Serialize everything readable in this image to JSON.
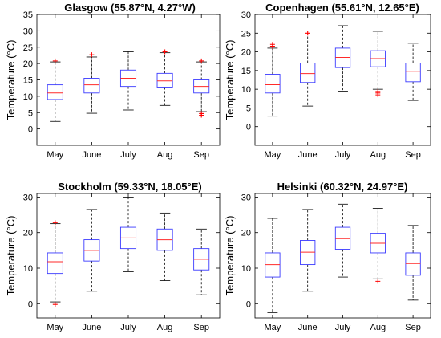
{
  "colors": {
    "box": "#3b3bff",
    "median": "#ff2a2a",
    "whisker": "#000000",
    "outlier": "#ff0000",
    "axis": "#000000"
  },
  "chart_data": [
    {
      "type": "box",
      "title": "Glasgow (55.87°N, 4.27°W)",
      "ylabel": "Temperature  (°C)",
      "ylim": [
        -5,
        35
      ],
      "yticks": [
        "0",
        "5",
        "10",
        "15",
        "20",
        "25",
        "30",
        "35"
      ],
      "categories": [
        "May",
        "June",
        "July",
        "Aug",
        "Sep"
      ],
      "boxes": [
        {
          "min": 2.3,
          "q1": 9.0,
          "median": 11.0,
          "q3": 13.5,
          "max": 20.5,
          "outliers": [
            20.8
          ]
        },
        {
          "min": 4.8,
          "q1": 11.0,
          "median": 13.5,
          "q3": 15.5,
          "max": 22.0,
          "outliers": [
            22.7
          ]
        },
        {
          "min": 5.8,
          "q1": 13.0,
          "median": 15.5,
          "q3": 18.0,
          "max": 23.6,
          "outliers": []
        },
        {
          "min": 7.2,
          "q1": 12.8,
          "median": 14.7,
          "q3": 17.0,
          "max": 23.3,
          "outliers": [
            23.6
          ]
        },
        {
          "min": 5.3,
          "q1": 11.0,
          "median": 13.0,
          "q3": 15.0,
          "max": 20.5,
          "outliers": [
            4.2,
            4.7,
            20.8
          ]
        }
      ]
    },
    {
      "type": "box",
      "title": "Copenhagen (55.61°N, 12.65°E)",
      "ylabel": "Temperature  (°C)",
      "ylim": [
        -5,
        30
      ],
      "yticks": [
        "0",
        "5",
        "10",
        "15",
        "20",
        "25",
        "30"
      ],
      "categories": [
        "May",
        "June",
        "July",
        "Aug",
        "Sep"
      ],
      "boxes": [
        {
          "min": 2.8,
          "q1": 9.0,
          "median": 11.2,
          "q3": 14.0,
          "max": 21.0,
          "outliers": [
            21.5,
            22.0
          ]
        },
        {
          "min": 5.5,
          "q1": 11.8,
          "median": 14.2,
          "q3": 17.0,
          "max": 24.5,
          "outliers": [
            25.0
          ]
        },
        {
          "min": 9.5,
          "q1": 15.8,
          "median": 18.5,
          "q3": 21.0,
          "max": 27.0,
          "outliers": []
        },
        {
          "min": 10.0,
          "q1": 16.0,
          "median": 18.2,
          "q3": 20.3,
          "max": 25.5,
          "outliers": [
            8.5,
            9.0,
            9.4
          ]
        },
        {
          "min": 7.0,
          "q1": 12.0,
          "median": 14.8,
          "q3": 17.0,
          "max": 22.3,
          "outliers": []
        }
      ]
    },
    {
      "type": "box",
      "title": "Stockholm (59.33°N, 18.05°E)",
      "ylabel": "Temperature  (°C)",
      "ylim": [
        -4,
        31
      ],
      "yticks": [
        "0",
        "10",
        "20",
        "30"
      ],
      "categories": [
        "May",
        "June",
        "July",
        "Aug",
        "Sep"
      ],
      "boxes": [
        {
          "min": 0.5,
          "q1": 8.5,
          "median": 11.8,
          "q3": 14.3,
          "max": 22.5,
          "outliers": [
            -0.2,
            22.8
          ]
        },
        {
          "min": 3.5,
          "q1": 12.0,
          "median": 15.0,
          "q3": 18.0,
          "max": 26.5,
          "outliers": []
        },
        {
          "min": 9.0,
          "q1": 15.5,
          "median": 18.5,
          "q3": 21.5,
          "max": 30.0,
          "outliers": []
        },
        {
          "min": 6.5,
          "q1": 15.0,
          "median": 18.0,
          "q3": 21.0,
          "max": 25.5,
          "outliers": []
        },
        {
          "min": 2.5,
          "q1": 9.5,
          "median": 12.5,
          "q3": 15.5,
          "max": 21.0,
          "outliers": []
        }
      ]
    },
    {
      "type": "box",
      "title": "Helsinki (60.32°N, 24.97°E)",
      "ylabel": "Temperature  (°C)",
      "ylim": [
        -4,
        31
      ],
      "yticks": [
        "0",
        "10",
        "20",
        "30"
      ],
      "categories": [
        "May",
        "June",
        "July",
        "Aug",
        "Sep"
      ],
      "boxes": [
        {
          "min": -2.5,
          "q1": 7.5,
          "median": 11.0,
          "q3": 14.3,
          "max": 24.0,
          "outliers": []
        },
        {
          "min": 3.5,
          "q1": 11.0,
          "median": 14.5,
          "q3": 17.8,
          "max": 26.5,
          "outliers": []
        },
        {
          "min": 7.5,
          "q1": 15.3,
          "median": 18.3,
          "q3": 21.5,
          "max": 28.0,
          "outliers": []
        },
        {
          "min": 7.0,
          "q1": 14.3,
          "median": 17.0,
          "q3": 19.8,
          "max": 26.8,
          "outliers": [
            6.3
          ]
        },
        {
          "min": 1.0,
          "q1": 8.0,
          "median": 11.3,
          "q3": 14.3,
          "max": 22.0,
          "outliers": []
        }
      ]
    }
  ]
}
